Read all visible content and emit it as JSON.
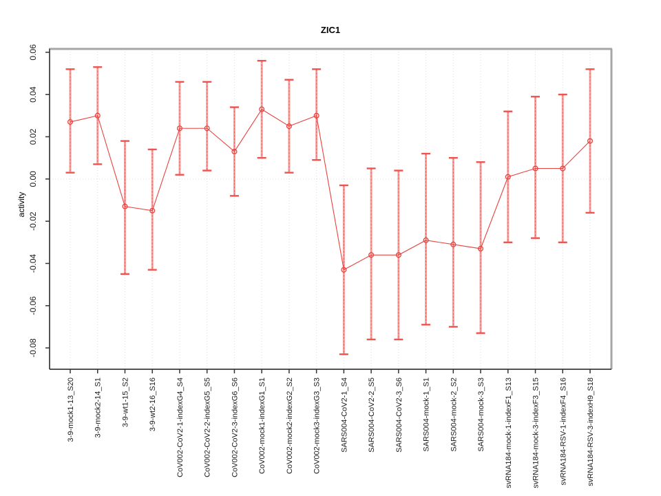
{
  "chart_data": {
    "type": "line",
    "title": "ZIC1",
    "xlabel": "",
    "ylabel": "activity",
    "legend_position": "none",
    "grid": {
      "vertical_dotted_per_category": true,
      "horizontal_dotted_at_zero": true
    },
    "ylim": [
      -0.0901,
      0.0616
    ],
    "yticks": [
      0.06,
      0.04,
      0.02,
      0.0,
      -0.02,
      -0.04,
      -0.06,
      -0.08
    ],
    "ytick_labels": [
      "0.06",
      "0.04",
      "0.02",
      "0.00",
      "-0.02",
      "-0.04",
      "-0.06",
      "-0.08"
    ],
    "categories": [
      "3-9-mock1-13_S20",
      "3-9-mock2-14_S1",
      "3-9-wt1-15_S2",
      "3-9-wt2-16_S16",
      "CoV002-CoV2-1-indexG4_S4",
      "CoV002-CoV2-2-indexG5_S5",
      "CoV002-CoV2-3-indexG6_S6",
      "CoV002-mock1-indexG1_S1",
      "CoV002-mock2-indexG2_S2",
      "CoV002-mock3-indexG3_S3",
      "SARS004-CoV2-1_S4",
      "SARS004-CoV2-2_S5",
      "SARS004-CoV2-3_S6",
      "SARS004-mock-1_S1",
      "SARS004-mock-2_S2",
      "SARS004-mock-3_S3",
      "svRNA184-mock-1-indexF1_S13",
      "svRNA184-mock-3-indexF3_S15",
      "svRNA184-RSV-1-indexF4_S16",
      "svRNA184-RSV-3-indexH9_S18"
    ],
    "series": [
      {
        "name": "activity",
        "marker": "open-circle",
        "values": [
          0.027,
          0.03,
          -0.013,
          -0.015,
          0.024,
          0.024,
          0.013,
          0.033,
          0.025,
          0.03,
          -0.043,
          -0.036,
          -0.036,
          -0.029,
          -0.031,
          -0.033,
          0.001,
          0.005,
          0.005,
          0.018
        ],
        "error_upper": [
          0.052,
          0.053,
          0.018,
          0.014,
          0.046,
          0.046,
          0.034,
          0.056,
          0.047,
          0.052,
          -0.003,
          0.005,
          0.004,
          0.012,
          0.01,
          0.008,
          0.032,
          0.039,
          0.04,
          0.052
        ],
        "error_lower": [
          0.003,
          0.007,
          -0.045,
          -0.043,
          0.002,
          0.004,
          -0.008,
          0.01,
          0.003,
          0.009,
          -0.083,
          -0.076,
          -0.076,
          -0.069,
          -0.07,
          -0.073,
          -0.03,
          -0.028,
          -0.03,
          -0.016
        ]
      }
    ],
    "colors": {
      "point": "#e9413d",
      "line": "#e9413d",
      "error_light": "#f7a29f",
      "error_dash": "#e95551",
      "error_cap": "#ef5350",
      "grid": "#d9d9d9",
      "frame_light": "#a6a6a6",
      "frame_mid": "#555555",
      "frame_dark": "#1a1a1a",
      "tick": "#333333"
    }
  }
}
